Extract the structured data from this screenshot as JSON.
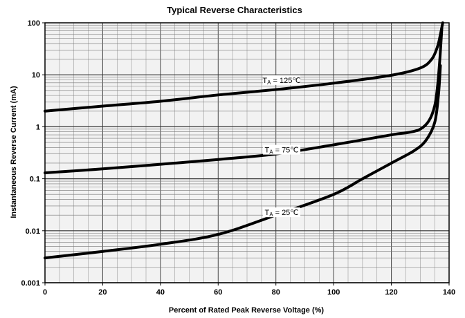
{
  "chart_data": {
    "type": "line",
    "title": "Typical Reverse Characteristics",
    "xlabel": "Percent of Rated Peak Reverse Voltage (%)",
    "ylabel": "Instantaneous Reverse Current (mA)",
    "xlim": [
      0,
      140
    ],
    "ylim": [
      0.001,
      100
    ],
    "yscale": "log",
    "grid": true,
    "x_ticks": [
      0,
      20,
      40,
      60,
      80,
      100,
      120,
      140
    ],
    "x_tick_labels": [
      "0",
      "20",
      "40",
      "60",
      "80",
      "100",
      "120",
      "140"
    ],
    "y_ticks": [
      0.001,
      0.01,
      0.1,
      1,
      10,
      100
    ],
    "y_tick_labels": [
      "0.001",
      "0.01",
      "0.1",
      "1",
      "10",
      "100"
    ],
    "line_color": "#000000",
    "grid_color": "#555555",
    "plot_background": "#f2f2f2",
    "series": [
      {
        "name": "TA = 125℃",
        "label_main": "T",
        "label_sub": "A",
        "label_rest": " = 125℃",
        "label_at": [
          82,
          7.0
        ],
        "x": [
          0,
          20,
          40,
          60,
          80,
          100,
          120,
          130,
          134,
          136,
          137,
          137.8
        ],
        "y": [
          2.0,
          2.5,
          3.1,
          4.1,
          5.2,
          6.9,
          9.8,
          13.5,
          20,
          35,
          60,
          100
        ]
      },
      {
        "name": "TA = 75℃",
        "label_main": "T",
        "label_sub": "A",
        "label_rest": " = 75℃",
        "label_at": [
          82,
          0.32
        ],
        "x": [
          0,
          20,
          40,
          60,
          80,
          100,
          120,
          126,
          130,
          133,
          135,
          136,
          136.8,
          137.5
        ],
        "y": [
          0.13,
          0.155,
          0.19,
          0.235,
          0.3,
          0.45,
          0.7,
          0.78,
          0.9,
          1.3,
          2.5,
          6,
          20,
          80
        ]
      },
      {
        "name": "TA = 25℃",
        "label_main": "T",
        "label_sub": "A",
        "label_rest": " = 25℃",
        "label_at": [
          82,
          0.02
        ],
        "x": [
          0,
          20,
          40,
          60,
          80,
          100,
          110,
          120,
          128,
          132,
          135,
          136.3,
          137
        ],
        "y": [
          0.003,
          0.004,
          0.0055,
          0.0085,
          0.02,
          0.05,
          0.1,
          0.2,
          0.35,
          0.55,
          1.2,
          4,
          15
        ]
      }
    ]
  }
}
